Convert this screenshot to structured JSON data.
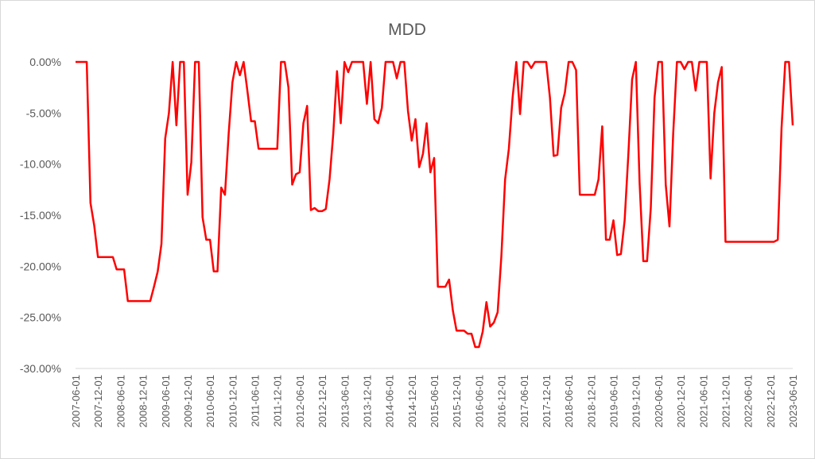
{
  "chart_data": {
    "type": "line",
    "title": "MDD",
    "categories": [
      "2007-06-01",
      null,
      null,
      null,
      null,
      null,
      "2007-12-01",
      null,
      null,
      null,
      null,
      null,
      "2008-06-01",
      null,
      null,
      null,
      null,
      null,
      "2008-12-01",
      null,
      null,
      null,
      null,
      null,
      "2009-06-01",
      null,
      null,
      null,
      null,
      null,
      "2009-12-01",
      null,
      null,
      null,
      null,
      null,
      "2010-06-01",
      null,
      null,
      null,
      null,
      null,
      "2010-12-01",
      null,
      null,
      null,
      null,
      null,
      "2011-06-01",
      null,
      null,
      null,
      null,
      null,
      "2011-12-01",
      null,
      null,
      null,
      null,
      null,
      "2012-06-01",
      null,
      null,
      null,
      null,
      null,
      "2012-12-01",
      null,
      null,
      null,
      null,
      null,
      "2013-06-01",
      null,
      null,
      null,
      null,
      null,
      "2013-12-01",
      null,
      null,
      null,
      null,
      null,
      "2014-06-01",
      null,
      null,
      null,
      null,
      null,
      "2014-12-01",
      null,
      null,
      null,
      null,
      null,
      "2015-06-01",
      null,
      null,
      null,
      null,
      null,
      "2015-12-01",
      null,
      null,
      null,
      null,
      null,
      "2016-06-01",
      null,
      null,
      null,
      null,
      null,
      "2016-12-01",
      null,
      null,
      null,
      null,
      null,
      "2017-06-01",
      null,
      null,
      null,
      null,
      null,
      "2017-12-01",
      null,
      null,
      null,
      null,
      null,
      "2018-06-01",
      null,
      null,
      null,
      null,
      null,
      "2018-12-01",
      null,
      null,
      null,
      null,
      null,
      "2019-06-01",
      null,
      null,
      null,
      null,
      null,
      "2019-12-01",
      null,
      null,
      null,
      null,
      null,
      "2020-06-01",
      null,
      null,
      null,
      null,
      null,
      "2020-12-01",
      null,
      null,
      null,
      null,
      null,
      "2021-06-01",
      null,
      null,
      null,
      null,
      null,
      "2021-12-01",
      null,
      null,
      null,
      null,
      null,
      "2022-06-01",
      null,
      null,
      null,
      null,
      null,
      "2022-12-01",
      null,
      null,
      null,
      null,
      null,
      "2023-06-01"
    ],
    "series": [
      {
        "color": "#ff0000",
        "values": [
          0,
          0,
          0,
          0,
          -13.8,
          -16,
          -19.1,
          -19.1,
          -19.1,
          -19.1,
          -19.1,
          -20.3,
          -20.3,
          -20.3,
          -23.4,
          -23.4,
          -23.4,
          -23.4,
          -23.4,
          -23.4,
          -23.4,
          -22,
          -20.5,
          -17.8,
          -7.5,
          -5,
          0,
          -6.2,
          0,
          0,
          -13,
          -9.8,
          0,
          0,
          -15.2,
          -17.4,
          -17.4,
          -20.5,
          -20.5,
          -12.3,
          -13,
          -7,
          -2,
          0,
          -1.3,
          0,
          -2.8,
          -5.8,
          -5.8,
          -8.5,
          -8.5,
          -8.5,
          -8.5,
          -8.5,
          -8.5,
          0,
          0,
          -2.5,
          -12,
          -11,
          -10.8,
          -6,
          -4.3,
          -14.5,
          -14.3,
          -14.6,
          -14.6,
          -14.4,
          -11.5,
          -7,
          -0.9,
          -6,
          0,
          -1,
          0,
          0,
          0,
          0,
          -4.1,
          0,
          -5.6,
          -6,
          -4.5,
          0,
          0,
          0,
          -1.6,
          0,
          0,
          -4.8,
          -7.7,
          -5.6,
          -10.3,
          -9,
          -6,
          -10.8,
          -9.4,
          -22,
          -22,
          -22,
          -21.3,
          -24.3,
          -26.3,
          -26.3,
          -26.3,
          -26.6,
          -26.6,
          -27.9,
          -27.9,
          -26.4,
          -23.5,
          -25.9,
          -25.5,
          -24.5,
          -19,
          -11.5,
          -8.5,
          -3.5,
          0,
          -5.1,
          0,
          0,
          -0.6,
          0,
          0,
          0,
          0,
          -3.5,
          -9.2,
          -9.1,
          -4.5,
          -3,
          0,
          0,
          -0.8,
          -13,
          -13,
          -13,
          -13,
          -13,
          -11.5,
          -6.3,
          -17.4,
          -17.4,
          -15.5,
          -18.9,
          -18.8,
          -15.5,
          -9,
          -1.7,
          0,
          -11.8,
          -19.5,
          -19.5,
          -14.3,
          -3.5,
          0,
          0,
          -12,
          -16.1,
          -7,
          0,
          0,
          -0.7,
          0,
          0,
          -2.8,
          0,
          0,
          0,
          -11.4,
          -5,
          -2,
          -0.5,
          -17.6,
          -17.6,
          -17.6,
          -17.6,
          -17.6,
          -17.6,
          -17.6,
          -17.6,
          -17.6,
          -17.6,
          -17.6,
          -17.6,
          -17.6,
          -17.6,
          -17.4,
          -6.5,
          0,
          0,
          -6.2
        ]
      }
    ],
    "ylim": [
      -30,
      0
    ],
    "yticks": [
      {
        "value": 0,
        "label": "0.00%"
      },
      {
        "value": -5,
        "label": "-5.00%"
      },
      {
        "value": -10,
        "label": "-10.00%"
      },
      {
        "value": -15,
        "label": "-15.00%"
      },
      {
        "value": -20,
        "label": "-20.00%"
      },
      {
        "value": -25,
        "label": "-25.00%"
      },
      {
        "value": -30,
        "label": "-30.00%"
      }
    ],
    "grid": false
  }
}
